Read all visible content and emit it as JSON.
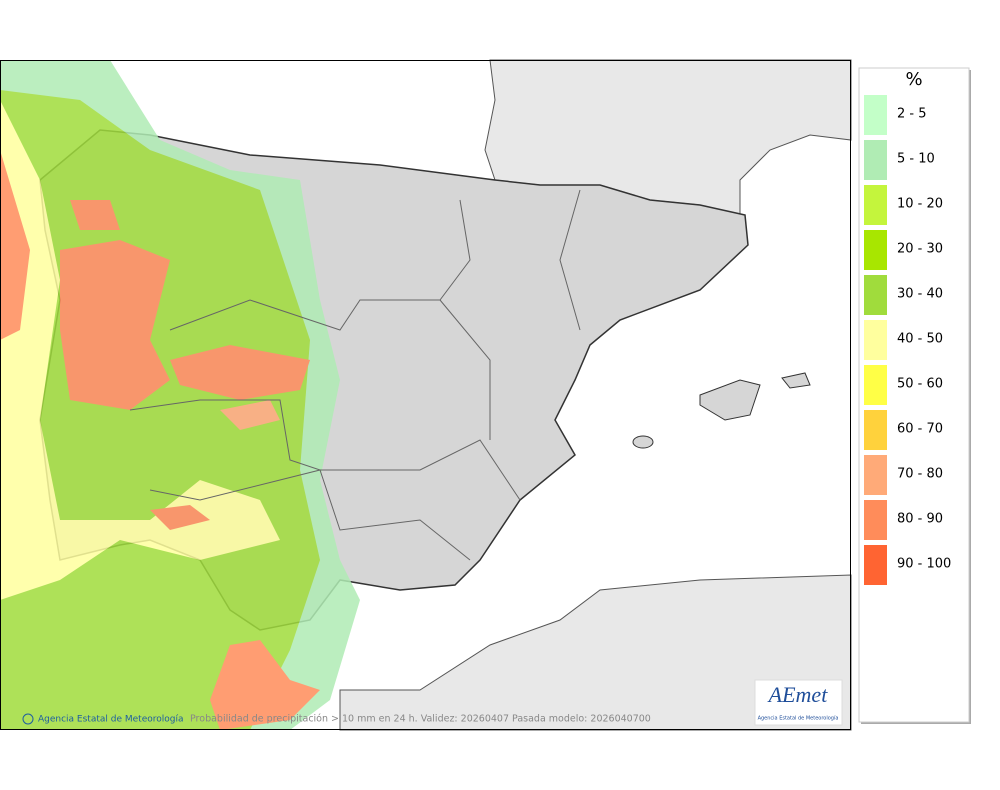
{
  "legend": {
    "title": "%",
    "items": [
      {
        "label": "2 - 5",
        "color": "#c3ffc8"
      },
      {
        "label": "5 - 10",
        "color": "#b0ecb4"
      },
      {
        "label": "10 - 20",
        "color": "#c4f53c"
      },
      {
        "label": "20 - 30",
        "color": "#a8e600"
      },
      {
        "label": "30 - 40",
        "color": "#a0dc3c"
      },
      {
        "label": "40 - 50",
        "color": "#ffff9e"
      },
      {
        "label": "50 - 60",
        "color": "#ffff46"
      },
      {
        "label": "60 - 70",
        "color": "#ffd23c"
      },
      {
        "label": "70 - 80",
        "color": "#ffaa78"
      },
      {
        "label": "80 - 90",
        "color": "#ff8c5a"
      },
      {
        "label": "90 - 100",
        "color": "#ff6432"
      }
    ]
  },
  "footer": {
    "credit": "Agencia Estatal de Meteorología",
    "caption": "Probabilidad de precipitación > 10 mm en 24 h. Validez: 20260407 Pasada modelo: 2026040700"
  },
  "logo": {
    "name": "AEmet",
    "subtitle": "Agencia Estatal de Meteorología"
  }
}
